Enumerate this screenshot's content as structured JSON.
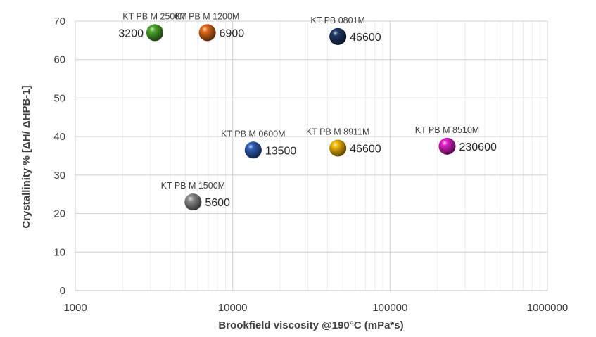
{
  "chart_data": {
    "type": "scatter",
    "xlabel": "Brookfield viscosity @190°C (mPa*s)",
    "ylabel": "Crystallinity % [ΔH/ ΔHPB-1]",
    "x_scale": "log",
    "xlim": [
      1000,
      1000000
    ],
    "ylim": [
      0,
      70
    ],
    "x_ticks": [
      "1000",
      "10000",
      "100000",
      "1000000"
    ],
    "y_ticks": [
      "0",
      "10",
      "20",
      "30",
      "40",
      "50",
      "60",
      "70"
    ],
    "grid": true,
    "points": [
      {
        "name": "KT PB M 2500M",
        "x": 3200,
        "y": 67,
        "label": "3200",
        "color": "#4ea72e",
        "label_side": "left"
      },
      {
        "name": "KT PB M 1200M",
        "x": 6900,
        "y": 67,
        "label": "6900",
        "color": "#e36c1a",
        "label_side": "right"
      },
      {
        "name": "KT PB 0801M",
        "x": 46600,
        "y": 66,
        "label": "46600",
        "color": "#1f3864",
        "label_side": "right"
      },
      {
        "name": "KT PB M 0600M",
        "x": 13500,
        "y": 36.5,
        "label": "13500",
        "color": "#2e5fb8",
        "label_side": "right"
      },
      {
        "name": "KT PB M 8911M",
        "x": 46600,
        "y": 37,
        "label": "46600",
        "color": "#f2b705",
        "label_side": "right"
      },
      {
        "name": "KT PB M 8510M",
        "x": 230600,
        "y": 37.5,
        "label": "230600",
        "color": "#e01fc8",
        "label_side": "right"
      },
      {
        "name": "KT PB M 1500M",
        "x": 5600,
        "y": 23,
        "label": "5600",
        "color": "#8c8c8c",
        "label_side": "right"
      }
    ]
  }
}
